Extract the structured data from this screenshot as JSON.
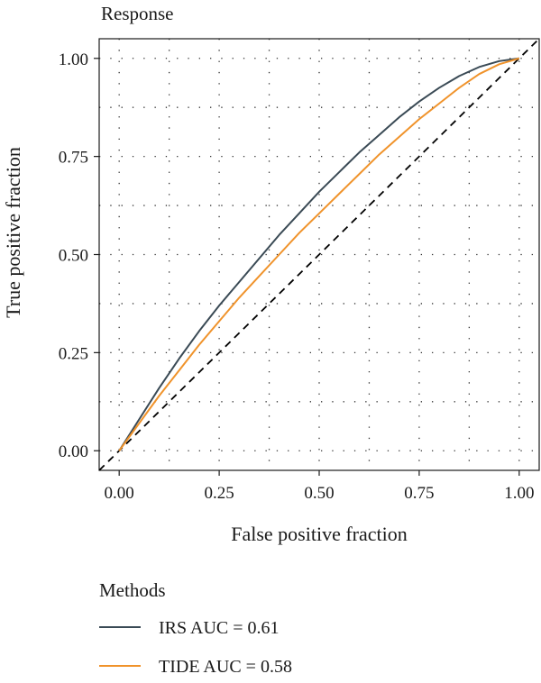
{
  "chart_data": {
    "type": "line",
    "title": "Response",
    "xlabel": "False positive fraction",
    "ylabel": "True positive fraction",
    "xlim": [
      -0.05,
      1.05
    ],
    "ylim": [
      -0.05,
      1.05
    ],
    "x_ticks": [
      "0.00",
      "0.25",
      "0.50",
      "0.75",
      "1.00"
    ],
    "y_ticks": [
      "0.00",
      "0.25",
      "0.50",
      "0.75",
      "1.00"
    ],
    "x_tick_values": [
      0,
      0.25,
      0.5,
      0.75,
      1
    ],
    "y_tick_values": [
      0,
      0.25,
      0.5,
      0.75,
      1
    ],
    "grid": "dotted, major and minor",
    "legend": {
      "title": "Methods",
      "placement": "bottom"
    },
    "series": [
      {
        "name": "IRS AUC = 0.61",
        "color": "#3a4a55",
        "x": [
          0,
          0.05,
          0.1,
          0.15,
          0.2,
          0.25,
          0.3,
          0.35,
          0.4,
          0.45,
          0.5,
          0.55,
          0.6,
          0.65,
          0.7,
          0.75,
          0.8,
          0.85,
          0.9,
          0.95,
          1
        ],
        "y": [
          0,
          0.08,
          0.16,
          0.235,
          0.305,
          0.37,
          0.43,
          0.49,
          0.55,
          0.605,
          0.66,
          0.71,
          0.76,
          0.805,
          0.85,
          0.89,
          0.925,
          0.955,
          0.978,
          0.993,
          1
        ]
      },
      {
        "name": "TIDE AUC = 0.58",
        "color": "#f0932b",
        "x": [
          0,
          0.05,
          0.1,
          0.15,
          0.2,
          0.25,
          0.3,
          0.35,
          0.4,
          0.45,
          0.5,
          0.55,
          0.6,
          0.65,
          0.7,
          0.75,
          0.8,
          0.85,
          0.9,
          0.95,
          1
        ],
        "y": [
          0,
          0.07,
          0.14,
          0.205,
          0.27,
          0.33,
          0.39,
          0.445,
          0.5,
          0.555,
          0.605,
          0.655,
          0.705,
          0.755,
          0.8,
          0.845,
          0.885,
          0.925,
          0.96,
          0.985,
          1
        ]
      }
    ],
    "reference_line": {
      "x": [
        -0.05,
        1.05
      ],
      "y": [
        -0.05,
        1.05
      ],
      "style": "dashed",
      "color": "#000000"
    }
  }
}
